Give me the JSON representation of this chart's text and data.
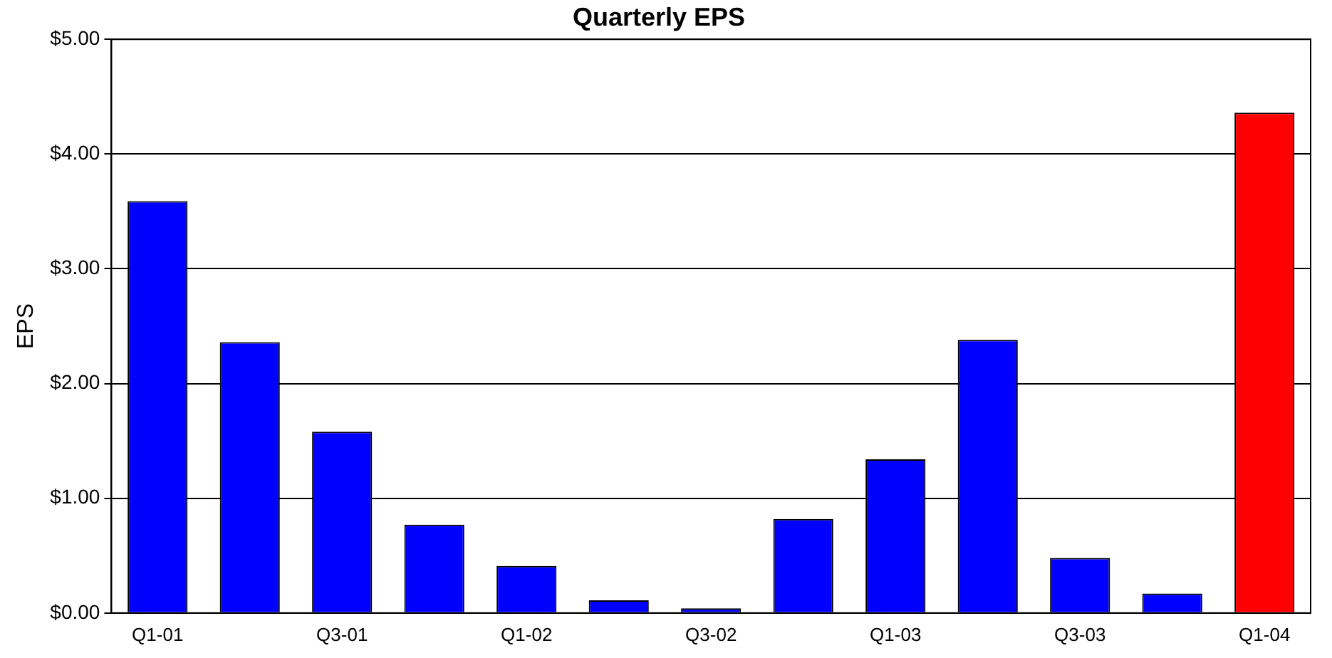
{
  "chart_data": {
    "type": "bar",
    "title": "Quarterly EPS",
    "ylabel": "EPS",
    "categories": [
      "Q1-01",
      null,
      "Q3-01",
      null,
      "Q1-02",
      null,
      "Q3-02",
      null,
      "Q1-03",
      null,
      "Q3-03",
      null,
      "Q1-04"
    ],
    "values": [
      3.59,
      2.36,
      1.58,
      0.77,
      0.41,
      0.11,
      0.04,
      0.82,
      1.34,
      2.38,
      0.48,
      0.17,
      4.36
    ],
    "colors": [
      "#0000ff",
      "#0000ff",
      "#0000ff",
      "#0000ff",
      "#0000ff",
      "#0000ff",
      "#0000ff",
      "#0000ff",
      "#0000ff",
      "#0000ff",
      "#0000ff",
      "#0000ff",
      "#ff0000"
    ],
    "ylim": [
      0,
      5
    ],
    "yticks": [
      {
        "value": 0,
        "label": "$0.00"
      },
      {
        "value": 1,
        "label": "$1.00"
      },
      {
        "value": 2,
        "label": "$2.00"
      },
      {
        "value": 3,
        "label": "$3.00"
      },
      {
        "value": 4,
        "label": "$4.00"
      },
      {
        "value": 5,
        "label": "$5.00"
      }
    ],
    "grid": "y",
    "legend": false
  }
}
